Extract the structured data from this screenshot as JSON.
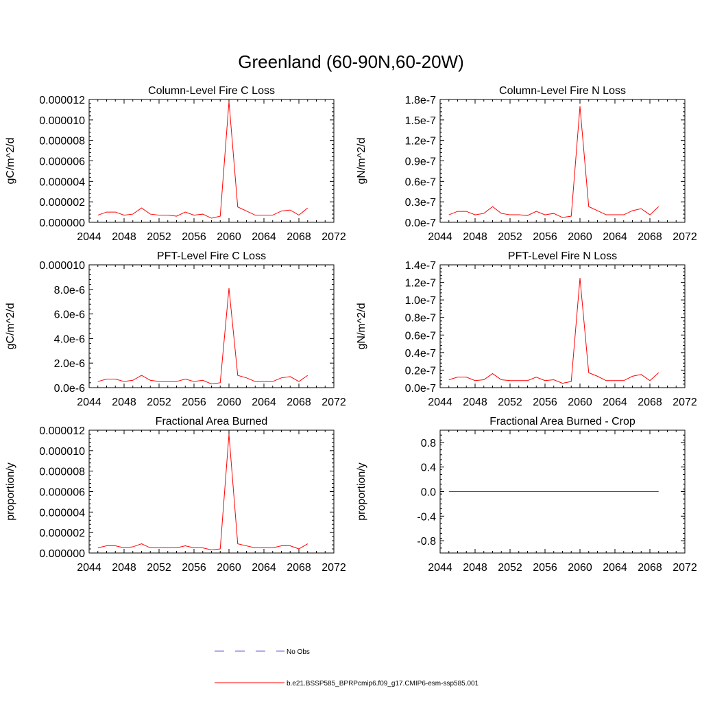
{
  "page": {
    "title": "Greenland (60-90N,60-20W)"
  },
  "legend": {
    "items": [
      {
        "label": "No Obs",
        "color": "#5b5bd6",
        "style": "dashed"
      },
      {
        "label": "b.e21.BSSP585_BPRPcmip6.f09_g17.CMIP6-esm-ssp585.001",
        "color": "#ff0000",
        "style": "solid"
      }
    ]
  },
  "colors": {
    "series": "#ff0000",
    "axis": "#000000"
  },
  "chart_data": [
    {
      "type": "line",
      "title": "Column-Level Fire C Loss",
      "ylabel": "gC/m^2/d",
      "xlim": [
        2044,
        2072
      ],
      "ylim": [
        0,
        1.2e-05
      ],
      "xticks": [
        2044,
        2048,
        2052,
        2056,
        2060,
        2064,
        2068,
        2072
      ],
      "xtick_labels": [
        "2044",
        "2048",
        "2052",
        "2056",
        "2060",
        "2064",
        "2068",
        "2072"
      ],
      "yticks": [
        0,
        2e-06,
        4e-06,
        6e-06,
        8e-06,
        1e-05,
        1.2e-05
      ],
      "ytick_labels": [
        "0.000000",
        "0.000002",
        "0.000004",
        "0.000006",
        "0.000008",
        "0.000010",
        "0.000012"
      ],
      "series": [
        {
          "name": "b.e21.BSSP585_BPRPcmip6.f09_g17.CMIP6-esm-ssp585.001",
          "x": [
            2045,
            2046,
            2047,
            2048,
            2049,
            2050,
            2051,
            2052,
            2053,
            2054,
            2055,
            2056,
            2057,
            2058,
            2059,
            2060,
            2061,
            2062,
            2063,
            2064,
            2065,
            2066,
            2067,
            2068,
            2069
          ],
          "y": [
            7e-07,
            1e-06,
            1e-06,
            7e-07,
            8e-07,
            1.4e-06,
            8e-07,
            7e-07,
            7e-07,
            6e-07,
            1e-06,
            7e-07,
            8e-07,
            4e-07,
            6e-07,
            1.18e-05,
            1.5e-06,
            1.1e-06,
            7e-07,
            7e-07,
            7e-07,
            1.1e-06,
            1.2e-06,
            7e-07,
            1.4e-06
          ]
        }
      ]
    },
    {
      "type": "line",
      "title": "Column-Level Fire N Loss",
      "ylabel": "gN/m^2/d",
      "xlim": [
        2044,
        2072
      ],
      "ylim": [
        0,
        1.8e-07
      ],
      "xticks": [
        2044,
        2048,
        2052,
        2056,
        2060,
        2064,
        2068,
        2072
      ],
      "xtick_labels": [
        "2044",
        "2048",
        "2052",
        "2056",
        "2060",
        "2064",
        "2068",
        "2072"
      ],
      "yticks": [
        0,
        3e-08,
        6e-08,
        9e-08,
        1.2e-07,
        1.5e-07,
        1.8e-07
      ],
      "ytick_labels": [
        "0.0e-7",
        "0.3e-7",
        "0.6e-7",
        "0.9e-7",
        "1.2e-7",
        "1.5e-7",
        "1.8e-7"
      ],
      "series": [
        {
          "name": "b.e21.BSSP585_BPRPcmip6.f09_g17.CMIP6-esm-ssp585.001",
          "x": [
            2045,
            2046,
            2047,
            2048,
            2049,
            2050,
            2051,
            2052,
            2053,
            2054,
            2055,
            2056,
            2057,
            2058,
            2059,
            2060,
            2061,
            2062,
            2063,
            2064,
            2065,
            2066,
            2067,
            2068,
            2069
          ],
          "y": [
            1.1e-08,
            1.6e-08,
            1.6e-08,
            1.1e-08,
            1.3e-08,
            2.3e-08,
            1.3e-08,
            1.1e-08,
            1.1e-08,
            1e-08,
            1.6e-08,
            1.1e-08,
            1.3e-08,
            7e-09,
            9e-09,
            1.7e-07,
            2.3e-08,
            1.7e-08,
            1.1e-08,
            1.1e-08,
            1.1e-08,
            1.7e-08,
            2e-08,
            1.1e-08,
            2.3e-08
          ]
        }
      ]
    },
    {
      "type": "line",
      "title": "PFT-Level Fire C Loss",
      "ylabel": "gC/m^2/d",
      "xlim": [
        2044,
        2072
      ],
      "ylim": [
        0,
        1e-05
      ],
      "xticks": [
        2044,
        2048,
        2052,
        2056,
        2060,
        2064,
        2068,
        2072
      ],
      "xtick_labels": [
        "2044",
        "2048",
        "2052",
        "2056",
        "2060",
        "2064",
        "2068",
        "2072"
      ],
      "yticks": [
        0,
        2e-06,
        4e-06,
        6e-06,
        8e-06,
        1e-05
      ],
      "ytick_labels": [
        "0.0e-6",
        "2.0e-6",
        "4.0e-6",
        "6.0e-6",
        "8.0e-6",
        "0.000010"
      ],
      "series": [
        {
          "name": "b.e21.BSSP585_BPRPcmip6.f09_g17.CMIP6-esm-ssp585.001",
          "x": [
            2045,
            2046,
            2047,
            2048,
            2049,
            2050,
            2051,
            2052,
            2053,
            2054,
            2055,
            2056,
            2057,
            2058,
            2059,
            2060,
            2061,
            2062,
            2063,
            2064,
            2065,
            2066,
            2067,
            2068,
            2069
          ],
          "y": [
            5e-07,
            7e-07,
            7e-07,
            5e-07,
            6e-07,
            1e-06,
            6e-07,
            5e-07,
            5e-07,
            5e-07,
            7e-07,
            5e-07,
            6e-07,
            3e-07,
            4e-07,
            8.1e-06,
            1e-06,
            8e-07,
            5e-07,
            5e-07,
            5e-07,
            8e-07,
            9e-07,
            5e-07,
            1e-06
          ]
        }
      ]
    },
    {
      "type": "line",
      "title": "PFT-Level Fire N Loss",
      "ylabel": "gN/m^2/d",
      "xlim": [
        2044,
        2072
      ],
      "ylim": [
        0,
        1.4e-07
      ],
      "xticks": [
        2044,
        2048,
        2052,
        2056,
        2060,
        2064,
        2068,
        2072
      ],
      "xtick_labels": [
        "2044",
        "2048",
        "2052",
        "2056",
        "2060",
        "2064",
        "2068",
        "2072"
      ],
      "yticks": [
        0,
        2e-08,
        4e-08,
        6e-08,
        8e-08,
        1e-07,
        1.2e-07,
        1.4e-07
      ],
      "ytick_labels": [
        "0.0e-7",
        "0.2e-7",
        "0.4e-7",
        "0.6e-7",
        "0.8e-7",
        "1.0e-7",
        "1.2e-7",
        "1.4e-7"
      ],
      "series": [
        {
          "name": "b.e21.BSSP585_BPRPcmip6.f09_g17.CMIP6-esm-ssp585.001",
          "x": [
            2045,
            2046,
            2047,
            2048,
            2049,
            2050,
            2051,
            2052,
            2053,
            2054,
            2055,
            2056,
            2057,
            2058,
            2059,
            2060,
            2061,
            2062,
            2063,
            2064,
            2065,
            2066,
            2067,
            2068,
            2069
          ],
          "y": [
            9e-09,
            1.2e-08,
            1.2e-08,
            8e-09,
            9e-09,
            1.6e-08,
            9e-09,
            8e-09,
            8e-09,
            8e-09,
            1.2e-08,
            8e-09,
            9e-09,
            5e-09,
            7e-09,
            1.25e-07,
            1.7e-08,
            1.3e-08,
            8e-09,
            8e-09,
            8e-09,
            1.3e-08,
            1.5e-08,
            8e-09,
            1.7e-08
          ]
        }
      ]
    },
    {
      "type": "line",
      "title": "Fractional Area Burned",
      "ylabel": "proportion/y",
      "xlim": [
        2044,
        2072
      ],
      "ylim": [
        0,
        1.2e-05
      ],
      "xticks": [
        2044,
        2048,
        2052,
        2056,
        2060,
        2064,
        2068,
        2072
      ],
      "xtick_labels": [
        "2044",
        "2048",
        "2052",
        "2056",
        "2060",
        "2064",
        "2068",
        "2072"
      ],
      "yticks": [
        0,
        2e-06,
        4e-06,
        6e-06,
        8e-06,
        1e-05,
        1.2e-05
      ],
      "ytick_labels": [
        "0.000000",
        "0.000002",
        "0.000004",
        "0.000006",
        "0.000008",
        "0.000010",
        "0.000012"
      ],
      "series": [
        {
          "name": "b.e21.BSSP585_BPRPcmip6.f09_g17.CMIP6-esm-ssp585.001",
          "x": [
            2045,
            2046,
            2047,
            2048,
            2049,
            2050,
            2051,
            2052,
            2053,
            2054,
            2055,
            2056,
            2057,
            2058,
            2059,
            2060,
            2061,
            2062,
            2063,
            2064,
            2065,
            2066,
            2067,
            2068,
            2069
          ],
          "y": [
            5e-07,
            7e-07,
            7e-07,
            5e-07,
            6e-07,
            9e-07,
            5e-07,
            5e-07,
            5e-07,
            5e-07,
            7e-07,
            5e-07,
            5e-07,
            3e-07,
            4e-07,
            1.16e-05,
            9e-07,
            7e-07,
            5e-07,
            5e-07,
            5e-07,
            7e-07,
            7e-07,
            4e-07,
            9e-07
          ]
        }
      ]
    },
    {
      "type": "line",
      "title": "Fractional Area Burned - Crop",
      "ylabel": "proportion/y",
      "xlim": [
        2044,
        2072
      ],
      "ylim": [
        -1,
        1
      ],
      "xticks": [
        2044,
        2048,
        2052,
        2056,
        2060,
        2064,
        2068,
        2072
      ],
      "xtick_labels": [
        "2044",
        "2048",
        "2052",
        "2056",
        "2060",
        "2064",
        "2068",
        "2072"
      ],
      "yticks": [
        -0.8,
        -0.4,
        0,
        0.4,
        0.8
      ],
      "ytick_labels": [
        "-0.8",
        "-0.4",
        "0.0",
        "0.4",
        "0.8"
      ],
      "series": [
        {
          "name": "b.e21.BSSP585_BPRPcmip6.f09_g17.CMIP6-esm-ssp585.001",
          "x": [
            2045,
            2046,
            2047,
            2048,
            2049,
            2050,
            2051,
            2052,
            2053,
            2054,
            2055,
            2056,
            2057,
            2058,
            2059,
            2060,
            2061,
            2062,
            2063,
            2064,
            2065,
            2066,
            2067,
            2068,
            2069
          ],
          "y": [
            0,
            0,
            0,
            0,
            0,
            0,
            0,
            0,
            0,
            0,
            0,
            0,
            0,
            0,
            0,
            0,
            0,
            0,
            0,
            0,
            0,
            0,
            0,
            0,
            0
          ]
        }
      ]
    }
  ]
}
